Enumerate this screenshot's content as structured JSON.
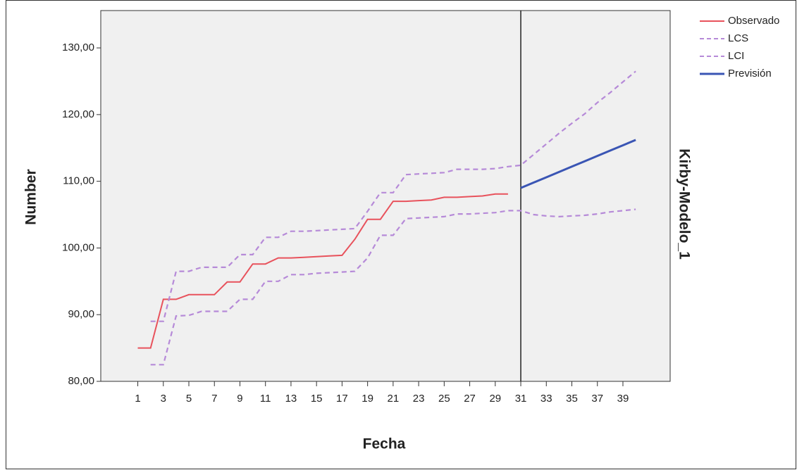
{
  "chart_data": {
    "type": "line",
    "y_label": "Number",
    "x_label": "Fecha",
    "model_label": "Kirby-Modelo_1",
    "x": [
      1,
      2,
      3,
      4,
      5,
      6,
      7,
      8,
      9,
      10,
      11,
      12,
      13,
      14,
      15,
      16,
      17,
      18,
      19,
      20,
      21,
      22,
      23,
      24,
      25,
      26,
      27,
      28,
      29,
      30,
      31,
      32,
      33,
      34,
      35,
      36,
      37,
      38,
      39,
      40
    ],
    "series": [
      {
        "name": "Observado",
        "color": "#e8525c",
        "dash": false,
        "values": [
          85,
          85,
          92.3,
          92.3,
          93,
          93,
          93,
          94.9,
          94.9,
          97.6,
          97.6,
          98.5,
          98.5,
          98.6,
          98.7,
          98.8,
          98.9,
          101.3,
          104.3,
          104.3,
          107,
          107,
          107.1,
          107.2,
          107.6,
          107.6,
          107.7,
          107.8,
          108.1,
          108.1,
          null,
          null,
          null,
          null,
          null,
          null,
          null,
          null,
          null,
          null
        ]
      },
      {
        "name": "LCS",
        "color": "#b68ad8",
        "dash": true,
        "values": [
          null,
          89,
          89,
          96.5,
          96.5,
          97.1,
          97.1,
          97.1,
          99,
          99,
          101.6,
          101.6,
          102.5,
          102.5,
          102.6,
          102.7,
          102.8,
          102.9,
          105.5,
          108.3,
          108.3,
          111,
          111.1,
          111.2,
          111.3,
          111.8,
          111.8,
          111.8,
          111.9,
          112.2,
          112.4,
          114,
          115.6,
          117.2,
          118.7,
          120.1,
          121.8,
          123.3,
          124.9,
          126.5
        ]
      },
      {
        "name": "LCI",
        "color": "#b68ad8",
        "dash": true,
        "values": [
          null,
          82.5,
          82.5,
          89.8,
          89.9,
          90.5,
          90.5,
          90.5,
          92.3,
          92.3,
          95,
          95,
          96,
          96,
          96.2,
          96.3,
          96.4,
          96.5,
          98.5,
          101.9,
          101.9,
          104.4,
          104.5,
          104.6,
          104.7,
          105.1,
          105.1,
          105.2,
          105.3,
          105.6,
          105.6,
          105,
          104.8,
          104.7,
          104.8,
          104.9,
          105.1,
          105.4,
          105.6,
          105.8
        ]
      },
      {
        "name": "Previsión",
        "color": "#3a55b4",
        "dash": false,
        "values": [
          null,
          null,
          null,
          null,
          null,
          null,
          null,
          null,
          null,
          null,
          null,
          null,
          null,
          null,
          null,
          null,
          null,
          null,
          null,
          null,
          null,
          null,
          null,
          null,
          null,
          null,
          null,
          null,
          null,
          null,
          109,
          109.8,
          110.6,
          111.4,
          112.2,
          113,
          113.8,
          114.6,
          115.4,
          116.2
        ]
      }
    ],
    "reference_line_x": 31,
    "xlim": [
      -1.9,
      42.7
    ],
    "ylim": [
      80,
      135.6
    ],
    "xticks": [
      1,
      3,
      5,
      7,
      9,
      11,
      13,
      15,
      17,
      19,
      21,
      23,
      25,
      27,
      29,
      31,
      33,
      35,
      37,
      39
    ],
    "yticks": [
      {
        "value": 80,
        "label": "80,00"
      },
      {
        "value": 90,
        "label": "90,00"
      },
      {
        "value": 100,
        "label": "100,00"
      },
      {
        "value": 110,
        "label": "110,00"
      },
      {
        "value": 120,
        "label": "120,00"
      },
      {
        "value": 130,
        "label": "130,00"
      }
    ],
    "plot_background": "#f0f0f0"
  }
}
